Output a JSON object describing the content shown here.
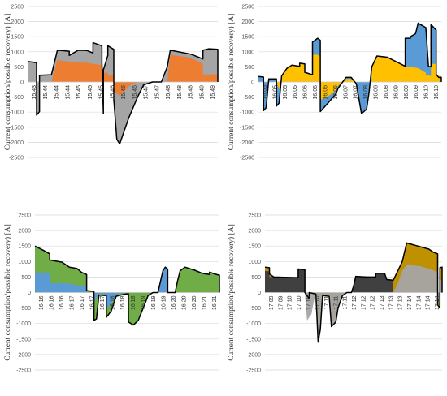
{
  "chart_data": [
    {
      "id": "p1",
      "type": "area",
      "ylabel": "Current consumption/possible recovery) [A]",
      "ylim": [
        -2500,
        2500
      ],
      "yticks": [
        "-2500",
        "-2000",
        "-1500",
        "-1000",
        "-500",
        "0",
        "500",
        "1000",
        "1500",
        "2000",
        "2500"
      ],
      "grid": true,
      "x_labels": [
        "15.43",
        "15.44",
        "15.44",
        "15.44",
        "15.45",
        "15.45",
        "15.45",
        "15.46",
        "15.46",
        "15.46",
        "15.47",
        "15.47",
        "15.48",
        "15.48",
        "15.48",
        "15.49",
        "15.49"
      ],
      "colors": {
        "primary": "#ed7d31",
        "secondary": "#a5a5a5",
        "outline": "#000000"
      },
      "total": [
        [
          0,
          680
        ],
        [
          6,
          640
        ],
        [
          6,
          -1100
        ],
        [
          8,
          -980
        ],
        [
          8,
          220
        ],
        [
          16,
          240
        ],
        [
          20,
          1050
        ],
        [
          28,
          1020
        ],
        [
          28,
          880
        ],
        [
          34,
          1050
        ],
        [
          40,
          1040
        ],
        [
          44,
          960
        ],
        [
          44,
          1300
        ],
        [
          50,
          1200
        ],
        [
          50,
          660
        ],
        [
          51,
          -1050
        ],
        [
          51,
          400
        ],
        [
          54,
          880
        ],
        [
          54,
          1200
        ],
        [
          58,
          1080
        ],
        [
          58,
          -580
        ],
        [
          60,
          -1900
        ],
        [
          62,
          -2050
        ],
        [
          68,
          -1200
        ],
        [
          74,
          -500
        ],
        [
          78,
          -100
        ],
        [
          84,
          0
        ],
        [
          90,
          0
        ],
        [
          94,
          500
        ],
        [
          96,
          1050
        ],
        [
          110,
          920
        ],
        [
          118,
          760
        ],
        [
          118,
          1050
        ],
        [
          122,
          1100
        ],
        [
          128,
          1080
        ],
        [
          128,
          0
        ]
      ],
      "primary": [
        [
          0,
          0
        ],
        [
          16,
          0
        ],
        [
          20,
          720
        ],
        [
          34,
          640
        ],
        [
          40,
          640
        ],
        [
          44,
          600
        ],
        [
          50,
          560
        ],
        [
          50,
          300
        ],
        [
          54,
          300
        ],
        [
          54,
          240
        ],
        [
          58,
          240
        ],
        [
          58,
          -300
        ],
        [
          62,
          -450
        ],
        [
          70,
          -60
        ],
        [
          76,
          0
        ],
        [
          94,
          0
        ],
        [
          96,
          900
        ],
        [
          108,
          820
        ],
        [
          114,
          700
        ],
        [
          118,
          600
        ],
        [
          118,
          250
        ],
        [
          128,
          250
        ],
        [
          128,
          0
        ]
      ]
    },
    {
      "id": "p2",
      "type": "area",
      "ylabel": "Current consumption/possible recovery) [A]",
      "ylim": [
        -2500,
        2500
      ],
      "yticks": [
        "-2500",
        "-2000",
        "-1500",
        "-1000",
        "-500",
        "0",
        "500",
        "1000",
        "1500",
        "2000",
        "2500"
      ],
      "grid": true,
      "x_labels": [
        "16.05",
        "16.05",
        "16.05",
        "16.05",
        "16.06",
        "16.06",
        "16.06",
        "16.06",
        "16.07",
        "16.07",
        "16.08",
        "16.08",
        "16.08",
        "16.09",
        "16.09",
        "16.09",
        "16.10",
        "16.10"
      ],
      "colors": {
        "primary": "#ffc000",
        "secondary": "#5b9bd5",
        "outline": "#000000"
      },
      "total": [
        [
          0,
          180
        ],
        [
          4,
          160
        ],
        [
          4,
          -950
        ],
        [
          6,
          -850
        ],
        [
          8,
          100
        ],
        [
          14,
          100
        ],
        [
          14,
          -800
        ],
        [
          16,
          -700
        ],
        [
          18,
          200
        ],
        [
          22,
          450
        ],
        [
          26,
          560
        ],
        [
          32,
          520
        ],
        [
          32,
          620
        ],
        [
          36,
          600
        ],
        [
          36,
          320
        ],
        [
          42,
          240
        ],
        [
          42,
          1320
        ],
        [
          46,
          1450
        ],
        [
          48,
          1380
        ],
        [
          48,
          -980
        ],
        [
          54,
          -700
        ],
        [
          60,
          -400
        ],
        [
          62,
          -200
        ],
        [
          68,
          150
        ],
        [
          72,
          150
        ],
        [
          76,
          -60
        ],
        [
          80,
          -1050
        ],
        [
          84,
          -900
        ],
        [
          86,
          -300
        ],
        [
          88,
          500
        ],
        [
          92,
          860
        ],
        [
          100,
          820
        ],
        [
          108,
          650
        ],
        [
          114,
          520
        ],
        [
          114,
          1450
        ],
        [
          118,
          1450
        ],
        [
          118,
          1500
        ],
        [
          122,
          1600
        ],
        [
          124,
          1950
        ],
        [
          126,
          1900
        ],
        [
          130,
          1800
        ],
        [
          132,
          520
        ],
        [
          134,
          500
        ],
        [
          134,
          1900
        ],
        [
          138,
          1720
        ],
        [
          138,
          250
        ],
        [
          140,
          150
        ],
        [
          142,
          150
        ],
        [
          142,
          0
        ]
      ],
      "primary": [
        [
          0,
          0
        ],
        [
          14,
          0
        ],
        [
          16,
          -250
        ],
        [
          18,
          180
        ],
        [
          22,
          430
        ],
        [
          26,
          540
        ],
        [
          32,
          500
        ],
        [
          32,
          600
        ],
        [
          36,
          580
        ],
        [
          36,
          300
        ],
        [
          42,
          220
        ],
        [
          42,
          900
        ],
        [
          46,
          900
        ],
        [
          48,
          850
        ],
        [
          48,
          -600
        ],
        [
          54,
          -480
        ],
        [
          60,
          -280
        ],
        [
          62,
          -120
        ],
        [
          68,
          100
        ],
        [
          72,
          100
        ],
        [
          76,
          0
        ],
        [
          88,
          0
        ],
        [
          88,
          480
        ],
        [
          92,
          840
        ],
        [
          100,
          800
        ],
        [
          108,
          650
        ],
        [
          114,
          500
        ],
        [
          114,
          520
        ],
        [
          124,
          460
        ],
        [
          130,
          300
        ],
        [
          130,
          220
        ],
        [
          132,
          220
        ],
        [
          134,
          200
        ],
        [
          134,
          600
        ],
        [
          138,
          600
        ],
        [
          138,
          200
        ],
        [
          142,
          200
        ],
        [
          142,
          0
        ]
      ]
    },
    {
      "id": "p3",
      "type": "area",
      "ylabel": "Current consumption/possible recovery) [A]",
      "ylim": [
        -2500,
        2500
      ],
      "yticks": [
        "-2500",
        "-2000",
        "-1500",
        "-1000",
        "-500",
        "0",
        "500",
        "1000",
        "1500",
        "2000",
        "2500"
      ],
      "grid": true,
      "x_labels": [
        "16.16",
        "16.16",
        "16.16",
        "16.17",
        "16.17",
        "16.17",
        "16.17",
        "16.18",
        "16.18",
        "16.18",
        "16.19",
        "16.19",
        "16.19",
        "16.20",
        "16.20",
        "16.20",
        "16.21",
        "16.21"
      ],
      "colors": {
        "primary": "#5b9bd5",
        "secondary": "#70ad47",
        "outline": "#000000"
      },
      "total": [
        [
          0,
          1500
        ],
        [
          6,
          1380
        ],
        [
          12,
          1250
        ],
        [
          12,
          1050
        ],
        [
          22,
          980
        ],
        [
          28,
          820
        ],
        [
          34,
          780
        ],
        [
          38,
          650
        ],
        [
          42,
          580
        ],
        [
          42,
          60
        ],
        [
          48,
          40
        ],
        [
          48,
          -900
        ],
        [
          50,
          -850
        ],
        [
          52,
          -80
        ],
        [
          58,
          -100
        ],
        [
          58,
          -800
        ],
        [
          62,
          -600
        ],
        [
          66,
          -120
        ],
        [
          72,
          -60
        ],
        [
          76,
          -40
        ],
        [
          76,
          -950
        ],
        [
          80,
          -1050
        ],
        [
          84,
          -900
        ],
        [
          88,
          -500
        ],
        [
          92,
          -100
        ],
        [
          96,
          0
        ],
        [
          100,
          0
        ],
        [
          104,
          700
        ],
        [
          106,
          820
        ],
        [
          108,
          750
        ],
        [
          108,
          0
        ],
        [
          114,
          0
        ],
        [
          116,
          380
        ],
        [
          118,
          700
        ],
        [
          122,
          820
        ],
        [
          130,
          720
        ],
        [
          136,
          620
        ],
        [
          142,
          580
        ],
        [
          142,
          660
        ],
        [
          146,
          600
        ],
        [
          150,
          560
        ],
        [
          150,
          0
        ]
      ],
      "primary": [
        [
          0,
          650
        ],
        [
          8,
          650
        ],
        [
          12,
          620
        ],
        [
          12,
          300
        ],
        [
          24,
          300
        ],
        [
          32,
          260
        ],
        [
          38,
          200
        ],
        [
          42,
          200
        ],
        [
          42,
          0
        ],
        [
          48,
          0
        ],
        [
          48,
          -300
        ],
        [
          52,
          -40
        ],
        [
          58,
          -50
        ],
        [
          58,
          -500
        ],
        [
          62,
          -380
        ],
        [
          66,
          -60
        ],
        [
          76,
          0
        ],
        [
          100,
          0
        ],
        [
          104,
          700
        ],
        [
          106,
          820
        ],
        [
          108,
          750
        ],
        [
          108,
          0
        ],
        [
          150,
          0
        ]
      ]
    },
    {
      "id": "p4",
      "type": "area",
      "ylabel": "Current consumption/possible recovery) [A]",
      "ylim": [
        -2500,
        2500
      ],
      "yticks": [
        "-2500",
        "-2000",
        "-1500",
        "-1000",
        "-500",
        "0",
        "500",
        "1000",
        "1500",
        "2000",
        "2500"
      ],
      "grid": true,
      "x_labels": [
        "17.09",
        "17.09",
        "17.10",
        "17.10",
        "17.10",
        "17.10",
        "17.11",
        "17.11",
        "17.11",
        "17.12",
        "17.12",
        "17.12",
        "17.13",
        "17.13",
        "17.13",
        "17.14",
        "17.14",
        "17.14",
        "17.14"
      ],
      "colors": {
        "primary": "#404040",
        "secondary": "#a5a5a5",
        "tertiary": "#bf9000",
        "outline": "#000000"
      },
      "total": [
        [
          0,
          820
        ],
        [
          4,
          800
        ],
        [
          4,
          600
        ],
        [
          8,
          500
        ],
        [
          30,
          480
        ],
        [
          30,
          760
        ],
        [
          36,
          740
        ],
        [
          36,
          0
        ],
        [
          40,
          -200
        ],
        [
          40,
          0
        ],
        [
          46,
          -50
        ],
        [
          48,
          -1600
        ],
        [
          50,
          -1200
        ],
        [
          52,
          -100
        ],
        [
          58,
          -120
        ],
        [
          60,
          -1100
        ],
        [
          64,
          -950
        ],
        [
          66,
          -500
        ],
        [
          70,
          -100
        ],
        [
          74,
          0
        ],
        [
          78,
          0
        ],
        [
          80,
          200
        ],
        [
          82,
          520
        ],
        [
          92,
          500
        ],
        [
          100,
          500
        ],
        [
          100,
          620
        ],
        [
          108,
          620
        ],
        [
          110,
          420
        ],
        [
          116,
          400
        ],
        [
          124,
          1000
        ],
        [
          128,
          1600
        ],
        [
          138,
          1500
        ],
        [
          148,
          1400
        ],
        [
          152,
          1300
        ],
        [
          156,
          1250
        ],
        [
          156,
          -400
        ],
        [
          158,
          -500
        ],
        [
          158,
          800
        ],
        [
          160,
          820
        ],
        [
          160,
          0
        ]
      ],
      "primary": [
        [
          0,
          700
        ],
        [
          4,
          680
        ],
        [
          4,
          500
        ],
        [
          30,
          500
        ],
        [
          30,
          760
        ],
        [
          36,
          740
        ],
        [
          36,
          0
        ],
        [
          40,
          -200
        ],
        [
          40,
          0
        ],
        [
          78,
          0
        ],
        [
          80,
          200
        ],
        [
          82,
          520
        ],
        [
          92,
          500
        ],
        [
          100,
          500
        ],
        [
          100,
          620
        ],
        [
          108,
          620
        ],
        [
          110,
          420
        ],
        [
          116,
          400
        ],
        [
          116,
          0
        ],
        [
          160,
          0
        ]
      ],
      "secondary": [
        [
          0,
          0
        ],
        [
          36,
          0
        ],
        [
          38,
          -900
        ],
        [
          42,
          -700
        ],
        [
          44,
          -300
        ],
        [
          46,
          -50
        ],
        [
          48,
          -1600
        ],
        [
          50,
          -1200
        ],
        [
          52,
          -100
        ],
        [
          58,
          -120
        ],
        [
          60,
          -1100
        ],
        [
          64,
          -950
        ],
        [
          66,
          -500
        ],
        [
          70,
          -100
        ],
        [
          74,
          0
        ],
        [
          116,
          0
        ],
        [
          120,
          300
        ],
        [
          124,
          700
        ],
        [
          128,
          900
        ],
        [
          140,
          850
        ],
        [
          150,
          750
        ],
        [
          156,
          650
        ],
        [
          156,
          -300
        ],
        [
          158,
          -350
        ],
        [
          158,
          400
        ],
        [
          160,
          400
        ],
        [
          160,
          0
        ]
      ]
    }
  ]
}
